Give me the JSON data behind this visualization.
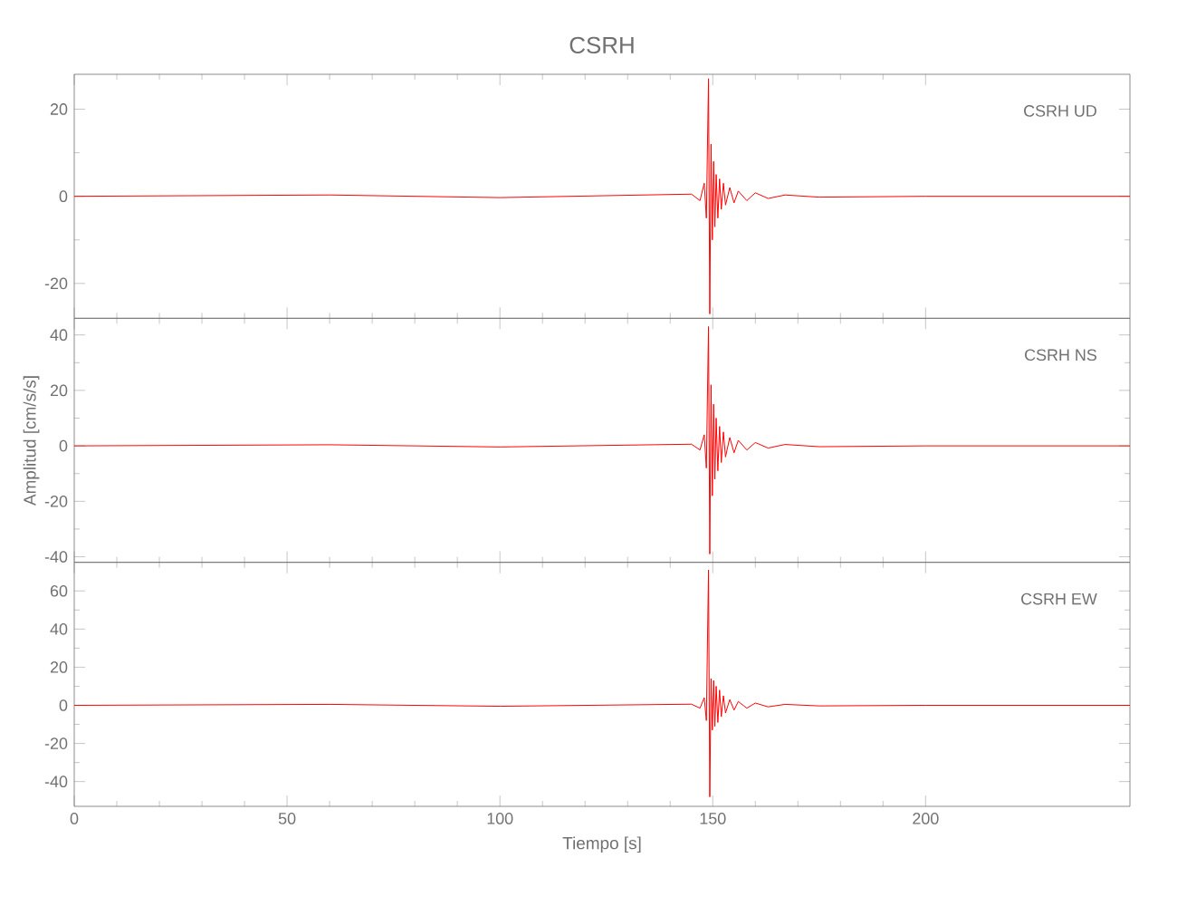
{
  "chart_data": [
    {
      "type": "line",
      "title": "CSRH",
      "annotations": [
        "CSRH UD"
      ],
      "xlim": [
        0,
        248
      ],
      "xticks": [
        0,
        50,
        100,
        150,
        200
      ],
      "ylim": [
        -28,
        28
      ],
      "yticks": [
        -20,
        0,
        20
      ],
      "tick_labels": "y",
      "line_style": "solid",
      "marker": "none",
      "series": [
        {
          "color": "#ff0000",
          "x": [
            0,
            60,
            100,
            145,
            147,
            148,
            148.5,
            149,
            149.3,
            149.6,
            149.9,
            150.2,
            150.5,
            150.8,
            151.2,
            151.6,
            152,
            152.5,
            153,
            154,
            155,
            156,
            158,
            160,
            163,
            167,
            175,
            200,
            248
          ],
          "values": [
            0,
            0.3,
            -0.3,
            0.5,
            -1,
            3,
            -5,
            27,
            -27,
            12,
            -10,
            8,
            -7,
            5,
            -5,
            4,
            -3,
            3,
            -2,
            2,
            -1.5,
            1.2,
            -1,
            0.8,
            -0.5,
            0.3,
            -0.2,
            0,
            0
          ]
        }
      ]
    },
    {
      "type": "line",
      "ylabel": "Amplitud [cm/s/s]",
      "annotations": [
        "CSRH NS"
      ],
      "xlim": [
        0,
        248
      ],
      "xticks": [
        0,
        50,
        100,
        150,
        200
      ],
      "ylim": [
        -42,
        46
      ],
      "yticks": [
        -40,
        -20,
        0,
        20,
        40
      ],
      "tick_labels": "y",
      "line_style": "solid",
      "marker": "none",
      "series": [
        {
          "color": "#ff0000",
          "x": [
            0,
            60,
            100,
            145,
            147,
            148,
            148.5,
            149,
            149.3,
            149.6,
            149.9,
            150.2,
            150.5,
            150.8,
            151.2,
            151.6,
            152,
            152.5,
            153,
            154,
            155,
            156,
            158,
            160,
            163,
            167,
            175,
            200,
            248
          ],
          "values": [
            0,
            0.4,
            -0.4,
            0.6,
            -1.5,
            4,
            -8,
            43,
            -39,
            22,
            -18,
            15,
            -12,
            10,
            -9,
            7,
            -6,
            5,
            -4,
            3,
            -2.5,
            2,
            -1.5,
            1.2,
            -0.8,
            0.5,
            -0.3,
            0,
            0
          ]
        }
      ]
    },
    {
      "type": "line",
      "xlabel": "Tiempo [s]",
      "annotations": [
        "CSRH EW"
      ],
      "xlim": [
        0,
        248
      ],
      "xticks": [
        0,
        50,
        100,
        150,
        200
      ],
      "ylim": [
        -53,
        75
      ],
      "yticks": [
        -40,
        -20,
        0,
        20,
        40,
        60
      ],
      "line_style": "solid",
      "marker": "none",
      "series": [
        {
          "color": "#ff0000",
          "x": [
            0,
            60,
            100,
            145,
            147,
            148,
            148.5,
            149,
            149.3,
            149.6,
            149.9,
            150.2,
            150.5,
            150.8,
            151.2,
            151.6,
            152,
            152.5,
            153,
            154,
            155,
            156,
            158,
            160,
            163,
            167,
            175,
            200,
            248
          ],
          "values": [
            0,
            0.5,
            -0.5,
            0.6,
            -1.5,
            4,
            -8,
            71,
            -48,
            14,
            -13,
            13,
            -11,
            10,
            -9,
            8,
            -6,
            5,
            -4,
            3,
            -2.5,
            2,
            -1.5,
            1.2,
            -0.8,
            0.5,
            -0.3,
            0,
            0
          ]
        }
      ]
    }
  ]
}
